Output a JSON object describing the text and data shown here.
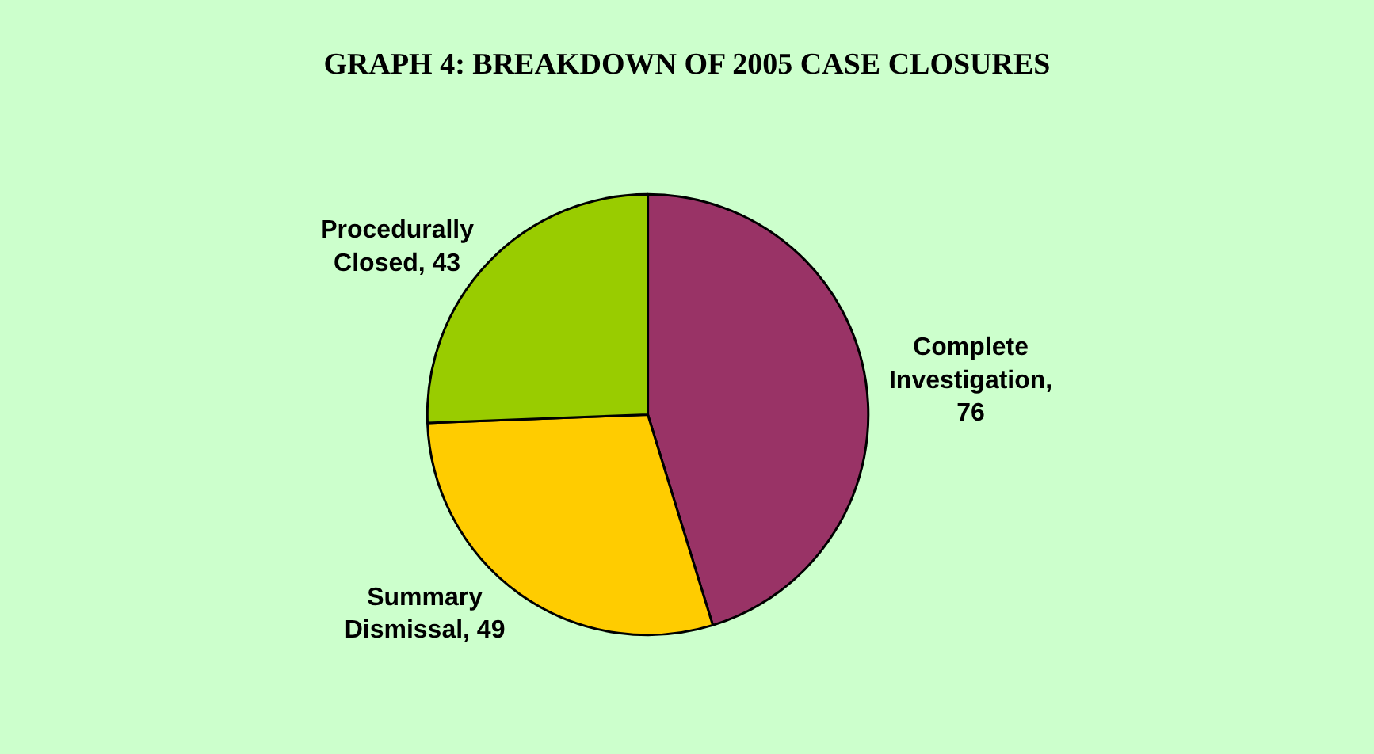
{
  "chart_data": {
    "type": "pie",
    "title": "GRAPH 4: BREAKDOWN OF 2005 CASE CLOSURES",
    "categories": [
      "Complete Investigation",
      "Summary Dismissal",
      "Procedurally Closed"
    ],
    "values": [
      76,
      49,
      43
    ],
    "colors": [
      "#993366",
      "#ffcc00",
      "#99cc00"
    ],
    "value_labels": [
      ", 76",
      ", 49",
      ", 43"
    ],
    "legend": false
  }
}
